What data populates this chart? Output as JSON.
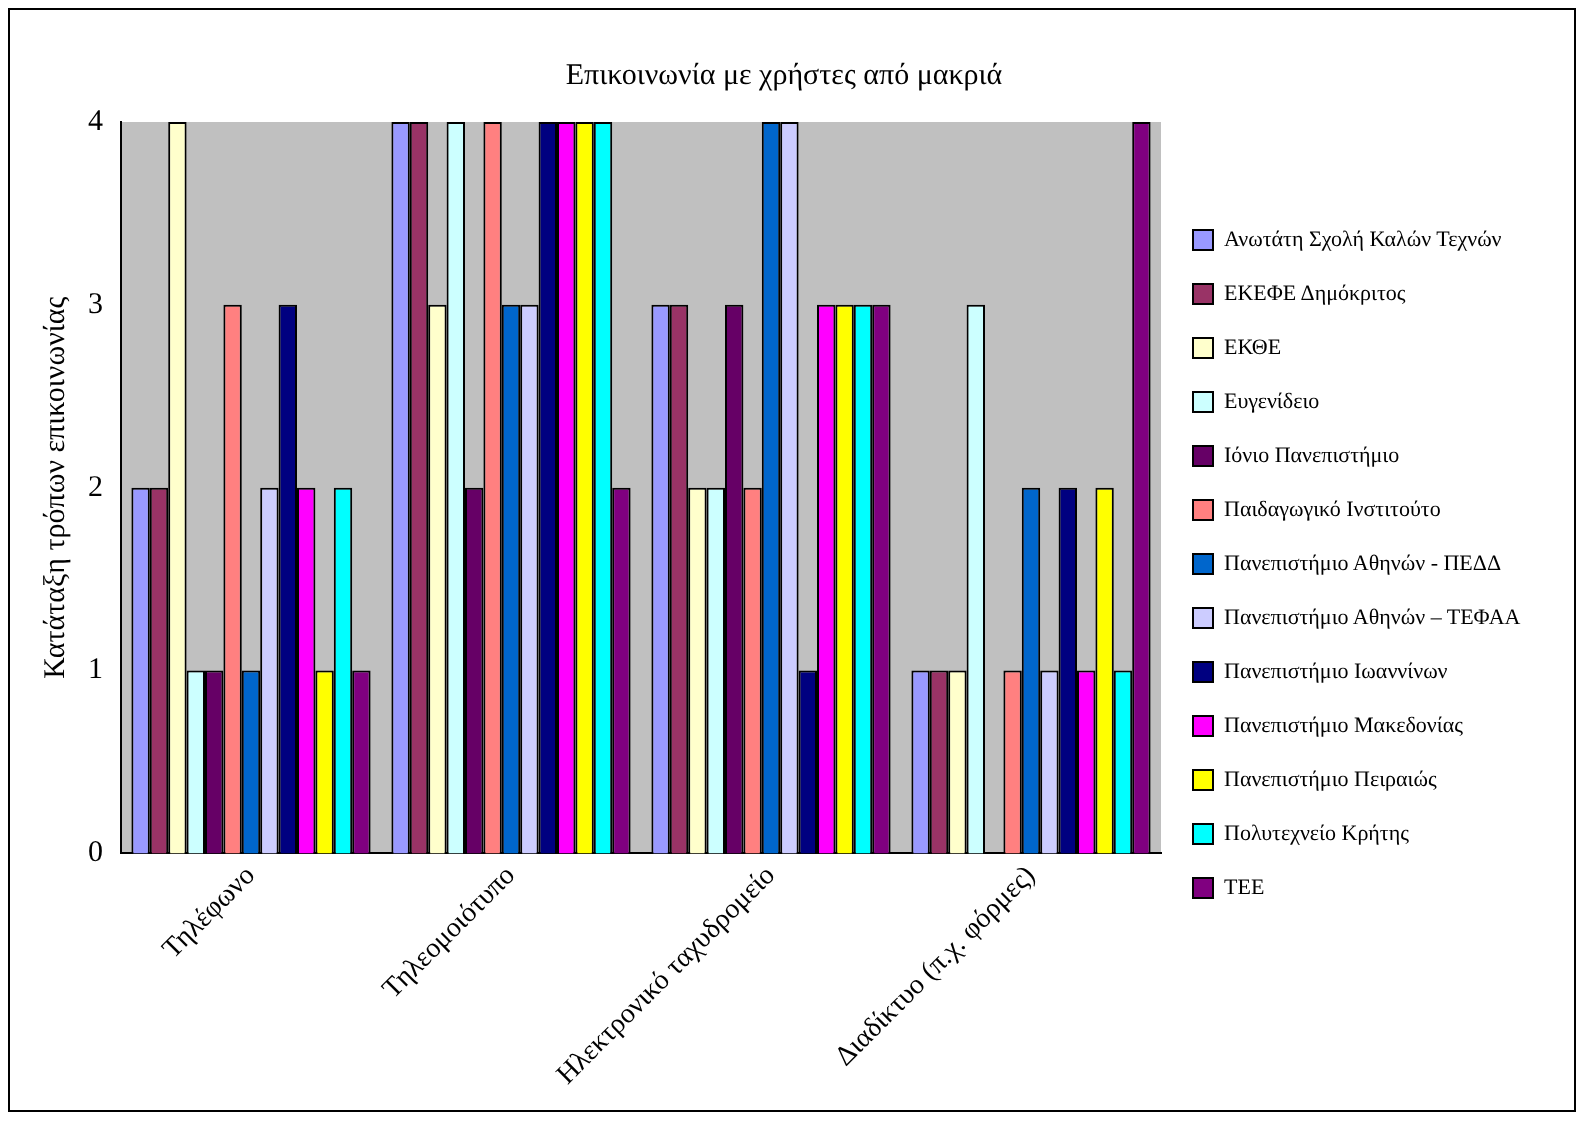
{
  "chart_data": {
    "type": "bar",
    "title": "Επικοινωνία με χρήστες από μακριά",
    "ylabel": "Κατάταξη τρόπων επικοινωνίας",
    "categories": [
      "Τηλέφωνο",
      "Τηλεομοιότυπο",
      "Ηλεκτρονικό ταχυδρομείο",
      "Διαδίκτυο (π.χ. φόρμες)"
    ],
    "ylim": [
      0,
      4
    ],
    "yticks": [
      0,
      1,
      2,
      3,
      4
    ],
    "grid": false,
    "legend": "right",
    "series": [
      {
        "name": "Ανωτάτη Σχολή Καλών Τεχνών",
        "color": "#9999ff",
        "values": [
          2,
          4,
          3,
          1
        ]
      },
      {
        "name": "ΕΚΕΦΕ Δημόκριτος",
        "color": "#993366",
        "values": [
          2,
          4,
          3,
          1
        ]
      },
      {
        "name": "ΕΚΘΕ",
        "color": "#ffffcc",
        "values": [
          4,
          3,
          2,
          1
        ]
      },
      {
        "name": "Ευγενίδειο",
        "color": "#ccffff",
        "values": [
          1,
          4,
          2,
          3
        ]
      },
      {
        "name": "Ιόνιο Πανεπιστήμιο",
        "color": "#660066",
        "values": [
          1,
          2,
          3,
          0
        ]
      },
      {
        "name": "Παιδαγωγικό Ινστιτούτο",
        "color": "#ff8080",
        "values": [
          3,
          4,
          2,
          1
        ]
      },
      {
        "name": "Πανεπιστήμιο Αθηνών - ΠΕΔΔ",
        "color": "#0066cc",
        "values": [
          1,
          3,
          4,
          2
        ]
      },
      {
        "name": "Πανεπιστήμιο Αθηνών – ΤΕΦΑΑ",
        "color": "#ccccff",
        "values": [
          2,
          3,
          4,
          1
        ]
      },
      {
        "name": "Πανεπιστήμιο Ιωαννίνων",
        "color": "#000080",
        "values": [
          3,
          4,
          1,
          2
        ]
      },
      {
        "name": "Πανεπιστήμιο Μακεδονίας",
        "color": "#ff00ff",
        "values": [
          2,
          4,
          3,
          1
        ]
      },
      {
        "name": "Πανεπιστήμιο Πειραιώς",
        "color": "#ffff00",
        "values": [
          1,
          4,
          3,
          2
        ]
      },
      {
        "name": "Πολυτεχνείο Κρήτης",
        "color": "#00ffff",
        "values": [
          2,
          4,
          3,
          1
        ]
      },
      {
        "name": "ΤΕΕ",
        "color": "#800080",
        "values": [
          1,
          2,
          3,
          4
        ]
      }
    ]
  }
}
